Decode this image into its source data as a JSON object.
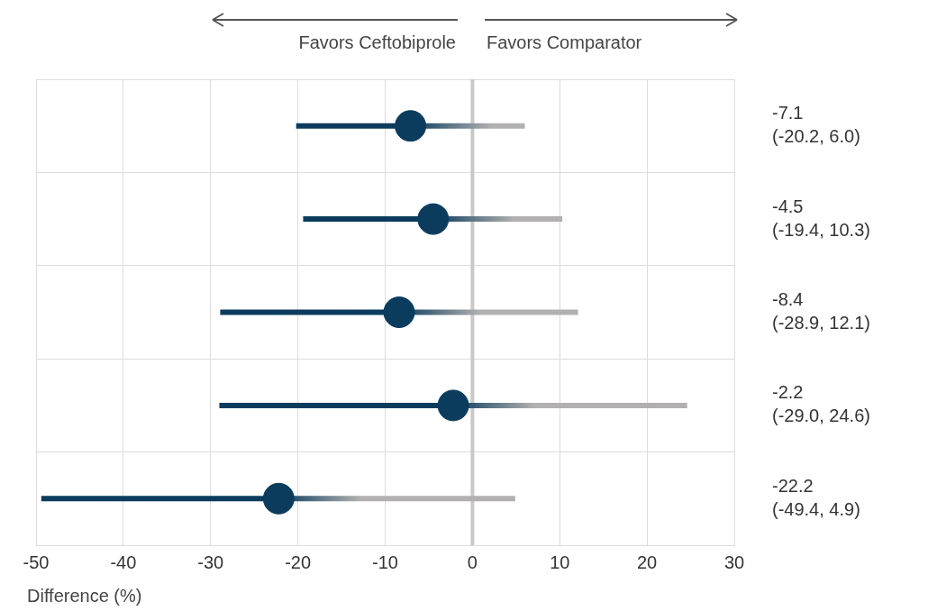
{
  "chart_data": {
    "type": "scatter",
    "orientation": "horizontal",
    "xlabel": "Difference (%)",
    "categories": [
      null,
      null,
      null,
      null,
      null
    ],
    "series": [
      {
        "color": "#0b3c5d",
        "values": [
          -7.1,
          -4.5,
          -8.4,
          -2.2,
          -22.2
        ],
        "errors": [
          [
            -20.2,
            6.0
          ],
          [
            -19.4,
            10.3
          ],
          [
            -28.9,
            12.1
          ],
          [
            -29.0,
            24.6
          ],
          [
            -49.4,
            4.9
          ]
        ]
      }
    ],
    "xlim": [
      -50,
      30
    ],
    "xticks": [
      -50,
      -40,
      -30,
      -20,
      -10,
      0,
      10,
      20,
      30
    ],
    "tick_labels": "x",
    "grid": true,
    "marker": "circle",
    "ref_lines": [
      {
        "axis": "x",
        "value": 0,
        "color": "#c8c8c8"
      }
    ],
    "annotations": [
      "Favors Ceftobiprole",
      "Favors Comparator",
      "-7.1\n(-20.2, 6.0)",
      "-4.5\n(-19.4, 10.3)",
      "-8.4\n(-28.9, 12.1)",
      "-2.2\n(-29.0, 24.6)",
      "-22.2\n(-49.4, 4.9)"
    ]
  }
}
